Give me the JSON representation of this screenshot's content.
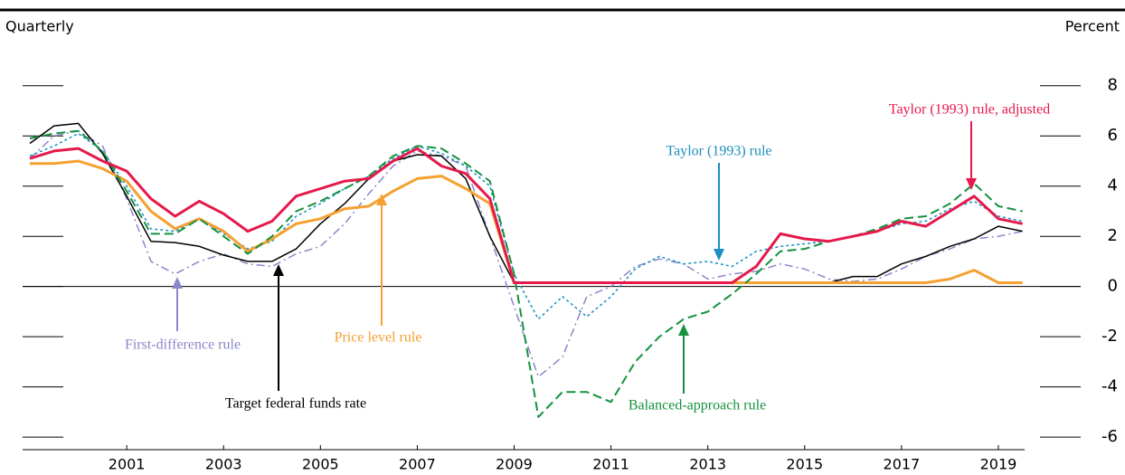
{
  "chart_data": {
    "type": "line",
    "frequency_label": "Quarterly",
    "unit_label": "Percent",
    "x": [
      1999.0,
      1999.5,
      2000.0,
      2000.5,
      2001.0,
      2001.5,
      2002.0,
      2002.5,
      2003.0,
      2003.5,
      2004.0,
      2004.5,
      2005.0,
      2005.5,
      2006.0,
      2006.5,
      2007.0,
      2007.5,
      2008.0,
      2008.5,
      2009.0,
      2009.5,
      2010.0,
      2010.5,
      2011.0,
      2011.5,
      2012.0,
      2012.5,
      2013.0,
      2013.5,
      2014.0,
      2014.5,
      2015.0,
      2015.5,
      2016.0,
      2016.5,
      2017.0,
      2017.5,
      2018.0,
      2018.5,
      2019.0,
      2019.5
    ],
    "xlim": [
      1998.85,
      2020.7
    ],
    "xticks": [
      2001,
      2003,
      2005,
      2007,
      2009,
      2011,
      2013,
      2015,
      2017,
      2019
    ],
    "ylim": [
      -6.5,
      9
    ],
    "yticks": [
      8,
      6,
      4,
      2,
      0,
      -2,
      -4,
      -6
    ],
    "series": [
      {
        "name": "First-difference rule",
        "color": "#8a88c8",
        "dash": "9,4,2,4",
        "width": 1.5,
        "values": [
          5.1,
          6.0,
          6.2,
          5.6,
          3.5,
          1.0,
          0.5,
          1.0,
          1.3,
          0.9,
          0.8,
          1.3,
          1.6,
          2.5,
          3.7,
          4.8,
          5.4,
          5.2,
          4.8,
          2.0,
          -0.8,
          -3.6,
          -2.8,
          -0.4,
          0.0,
          0.8,
          1.1,
          0.9,
          0.3,
          0.5,
          0.6,
          0.9,
          0.7,
          0.3,
          0.2,
          0.3,
          0.7,
          1.2,
          1.5,
          1.9,
          2.0,
          2.2
        ]
      },
      {
        "name": "Taylor (1993) rule",
        "color": "#1a8fc0",
        "dash": "3,3",
        "width": 1.5,
        "values": [
          5.2,
          5.6,
          6.1,
          5.4,
          4.0,
          2.3,
          2.2,
          2.7,
          2.1,
          1.5,
          1.8,
          2.8,
          3.3,
          3.9,
          4.4,
          5.1,
          5.6,
          5.3,
          4.8,
          4.0,
          0.5,
          -1.3,
          -0.4,
          -1.2,
          -0.4,
          0.7,
          1.2,
          0.9,
          1.0,
          0.8,
          1.4,
          1.6,
          1.7,
          1.8,
          2.0,
          2.2,
          2.5,
          2.6,
          3.1,
          3.4,
          2.8,
          2.6
        ]
      },
      {
        "name": "Target federal funds rate",
        "color": "#000000",
        "dash": "",
        "width": 1.5,
        "values": [
          5.7,
          6.4,
          6.5,
          5.3,
          3.6,
          1.8,
          1.75,
          1.6,
          1.25,
          1.0,
          1.0,
          1.5,
          2.5,
          3.3,
          4.3,
          5.0,
          5.25,
          5.2,
          4.3,
          2.0,
          0.15,
          0.15,
          0.15,
          0.15,
          0.15,
          0.15,
          0.15,
          0.15,
          0.15,
          0.15,
          0.15,
          0.15,
          0.15,
          0.15,
          0.4,
          0.4,
          0.9,
          1.2,
          1.6,
          1.9,
          2.4,
          2.2
        ]
      },
      {
        "name": "Price level rule",
        "color": "#f5a031",
        "dash": "",
        "width": 3,
        "values": [
          4.9,
          4.9,
          5.0,
          4.7,
          4.2,
          3.0,
          2.3,
          2.7,
          2.2,
          1.4,
          1.9,
          2.5,
          2.7,
          3.1,
          3.2,
          3.8,
          4.3,
          4.4,
          3.9,
          3.3,
          0.15,
          0.15,
          0.15,
          0.15,
          0.15,
          0.15,
          0.15,
          0.15,
          0.15,
          0.15,
          0.15,
          0.15,
          0.15,
          0.15,
          0.15,
          0.15,
          0.15,
          0.15,
          0.3,
          0.65,
          0.15,
          0.15
        ]
      },
      {
        "name": "Balanced-approach rule",
        "color": "#14923f",
        "dash": "10,5",
        "width": 2,
        "values": [
          5.9,
          6.1,
          6.2,
          5.4,
          3.8,
          2.1,
          2.1,
          2.7,
          2.0,
          1.3,
          2.0,
          3.0,
          3.4,
          3.9,
          4.4,
          5.2,
          5.6,
          5.5,
          4.9,
          4.2,
          0.5,
          -5.2,
          -4.2,
          -4.2,
          -4.6,
          -3.0,
          -2.0,
          -1.3,
          -1.0,
          -0.3,
          0.5,
          1.4,
          1.5,
          1.8,
          2.0,
          2.3,
          2.7,
          2.8,
          3.3,
          4.1,
          3.2,
          3.0
        ]
      },
      {
        "name": "Taylor (1993) rule, adjusted",
        "color": "#e5194b",
        "dash": "",
        "width": 3,
        "values": [
          5.1,
          5.4,
          5.5,
          5.0,
          4.6,
          3.5,
          2.8,
          3.4,
          2.9,
          2.2,
          2.6,
          3.6,
          3.9,
          4.2,
          4.3,
          5.0,
          5.5,
          4.8,
          4.5,
          3.5,
          0.15,
          0.15,
          0.15,
          0.15,
          0.15,
          0.15,
          0.15,
          0.15,
          0.15,
          0.15,
          0.8,
          2.1,
          1.9,
          1.8,
          2.0,
          2.2,
          2.6,
          2.4,
          3.0,
          3.6,
          2.7,
          2.5
        ]
      }
    ]
  }
}
